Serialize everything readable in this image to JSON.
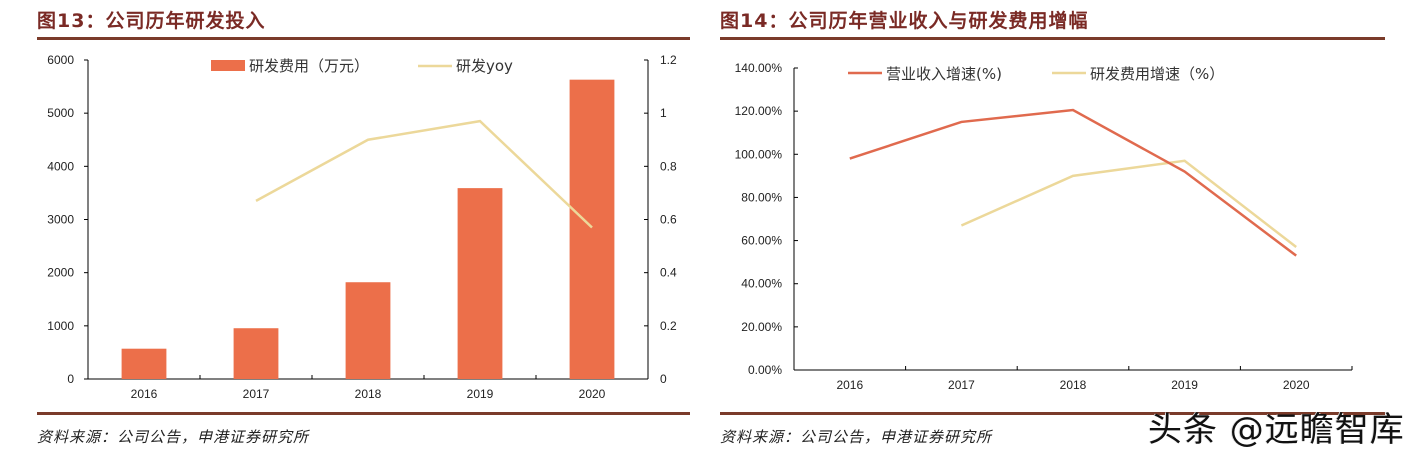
{
  "colors": {
    "bar": "#ec6f4a",
    "yoy": "#ecd89a",
    "revenue": "#e06a4e",
    "rd": "#ecd89a",
    "title": "#7a2a25",
    "rule": "#7a3b2a"
  },
  "watermark": "头条 @远瞻智库",
  "chart_data": [
    {
      "type": "bar",
      "title": "图13：公司历年研发投入",
      "source": "资料来源：公司公告，申港证券研究所",
      "categories": [
        "2016",
        "2017",
        "2018",
        "2019",
        "2020"
      ],
      "series": [
        {
          "name": "研发费用（万元）",
          "type": "bar",
          "axis": "left",
          "values": [
            570,
            955,
            1820,
            3590,
            5630
          ]
        },
        {
          "name": "研发yoy",
          "type": "line",
          "axis": "right",
          "values": [
            null,
            0.67,
            0.9,
            0.97,
            0.57
          ]
        }
      ],
      "ylim": [
        0,
        6000
      ],
      "yticks": [
        "0",
        "1000",
        "2000",
        "3000",
        "4000",
        "5000",
        "6000"
      ],
      "y2lim": [
        0,
        1.2
      ],
      "y2ticks": [
        "0",
        "0.2",
        "0.4",
        "0.6",
        "0.8",
        "1",
        "1.2"
      ],
      "legend": "top-center",
      "grid": false
    },
    {
      "type": "line",
      "title": "图14：公司历年营业收入与研发费用增幅",
      "source": "资料来源：公司公告，申港证券研究所",
      "categories": [
        "2016",
        "2017",
        "2018",
        "2019",
        "2020"
      ],
      "series": [
        {
          "name": "营业收入增速(%)",
          "values": [
            98,
            115,
            120.5,
            92,
            53
          ]
        },
        {
          "name": "研发费用增速（%）",
          "values": [
            null,
            67,
            90,
            97,
            57
          ]
        }
      ],
      "ylim": [
        0,
        140
      ],
      "yticks": [
        "0.00%",
        "20.00%",
        "40.00%",
        "60.00%",
        "80.00%",
        "100.00%",
        "120.00%",
        "140.00%"
      ],
      "legend": "top-center",
      "grid": false
    }
  ]
}
